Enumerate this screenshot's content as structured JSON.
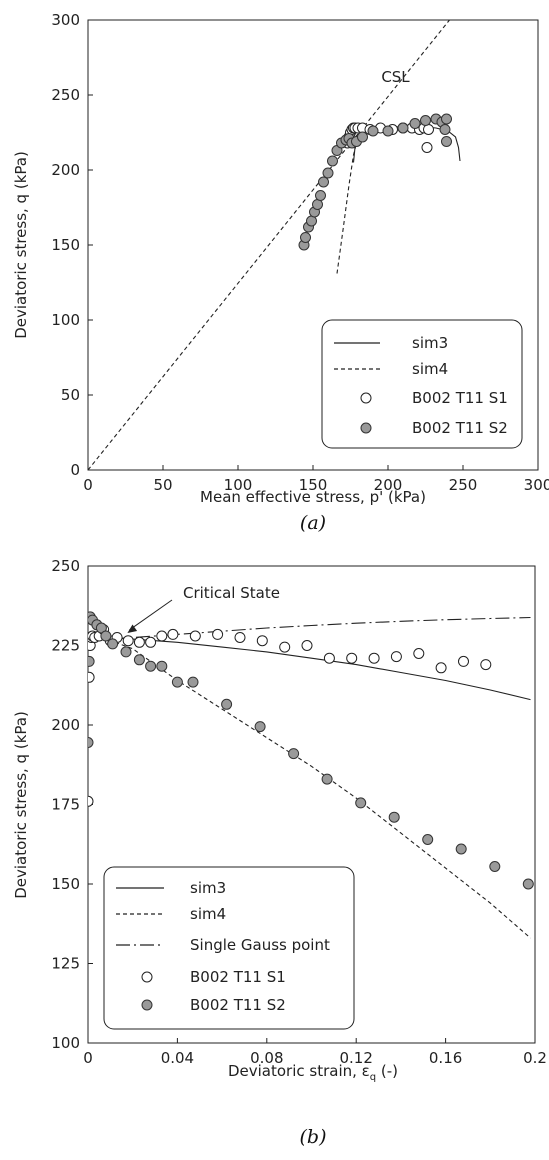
{
  "chart_data": [
    {
      "type": "line",
      "caption": "(a)",
      "xlabel": "Mean effective stress, p' (kPa)",
      "ylabel": "Deviatoric stress, q (kPa)",
      "xlim": [
        0,
        300
      ],
      "ylim": [
        0,
        300
      ],
      "xticks": [
        "0",
        "50",
        "100",
        "150",
        "200",
        "250",
        "300"
      ],
      "yticks": [
        "0",
        "50",
        "100",
        "150",
        "200",
        "250",
        "300"
      ],
      "grid": false,
      "legend_position": "bottom-right",
      "annotations": [
        {
          "text": "CSL",
          "x": 205,
          "y": 262
        }
      ],
      "series": [
        {
          "name": "CSL",
          "style": "dashed-line",
          "x": [
            0,
            241
          ],
          "y": [
            0,
            300
          ]
        },
        {
          "name": "sim3",
          "style": "solid-line",
          "x": [
            177,
            178,
            180,
            185,
            195,
            210,
            222,
            232,
            240,
            245,
            247,
            248
          ],
          "y": [
            205,
            215,
            222,
            226,
            228,
            229,
            229,
            228,
            226,
            222,
            215,
            206
          ]
        },
        {
          "name": "sim4",
          "style": "dashed-line",
          "x": [
            166,
            170,
            174,
            177,
            180,
            183,
            185
          ],
          "y": [
            131,
            160,
            190,
            210,
            222,
            227,
            230
          ]
        },
        {
          "name": "B002 T11 S1",
          "style": "open-circle",
          "x": [
            173,
            174,
            175,
            176,
            177,
            178,
            180,
            183,
            188,
            195,
            203,
            210,
            216,
            221,
            224,
            227,
            226
          ],
          "y": [
            218,
            222,
            225,
            227,
            228,
            228,
            228,
            228,
            227,
            228,
            227,
            228,
            228,
            227,
            228,
            227,
            215
          ]
        },
        {
          "name": "B002 T11 S2",
          "style": "filled-circle",
          "x": [
            144,
            145,
            147,
            149,
            151,
            153,
            155,
            157,
            160,
            163,
            166,
            169,
            172,
            174,
            176,
            179,
            183,
            190,
            200,
            210,
            218,
            225,
            232,
            236,
            238,
            239,
            239
          ],
          "y": [
            150,
            155,
            162,
            166,
            172,
            177,
            183,
            192,
            198,
            206,
            213,
            218,
            220,
            221,
            218,
            219,
            222,
            226,
            226,
            228,
            231,
            233,
            234,
            232,
            227,
            219,
            234
          ]
        }
      ]
    },
    {
      "type": "line",
      "caption": "(b)",
      "xlabel": "Deviatoric strain, ε",
      "xlabel_sub": "q",
      "xlabel_suffix": " (-)",
      "ylabel": "Deviatoric stress, q (kPa)",
      "xlim": [
        0,
        0.2
      ],
      "ylim": [
        100,
        250
      ],
      "xticks": [
        "0",
        "0.04",
        "0.08",
        "0.12",
        "0.16",
        "0.2"
      ],
      "yticks": [
        "100",
        "125",
        "150",
        "175",
        "200",
        "225",
        "250"
      ],
      "grid": false,
      "legend_position": "bottom-left",
      "annotations": [
        {
          "text": "Critical State",
          "x": 0.0172,
          "y": 228
        }
      ],
      "series": [
        {
          "name": "sim3",
          "style": "solid-line",
          "x": [
            0,
            0.005,
            0.01,
            0.02,
            0.04,
            0.06,
            0.08,
            0.1,
            0.12,
            0.14,
            0.16,
            0.18,
            0.198
          ],
          "y": [
            228,
            227.8,
            227.5,
            227,
            226,
            224.5,
            223,
            221,
            219,
            216.5,
            214,
            211,
            208
          ]
        },
        {
          "name": "sim4",
          "style": "dashed-line",
          "x": [
            0,
            0.005,
            0.01,
            0.02,
            0.04,
            0.06,
            0.08,
            0.1,
            0.12,
            0.14,
            0.16,
            0.18,
            0.198
          ],
          "y": [
            228,
            227.5,
            226.5,
            224,
            214,
            205,
            196,
            187,
            177,
            166,
            155,
            144,
            133
          ]
        },
        {
          "name": "Single Gauss point",
          "style": "dash-dot-line",
          "x": [
            0,
            0.01,
            0.02,
            0.04,
            0.06,
            0.08,
            0.1,
            0.12,
            0.14,
            0.16,
            0.18,
            0.198
          ],
          "y": [
            227,
            227,
            227.5,
            228.5,
            229.5,
            230.5,
            231.3,
            232,
            232.6,
            233.1,
            233.5,
            233.8
          ]
        },
        {
          "name": "B002 T11 S1",
          "style": "open-circle",
          "x": [
            0,
            0.0005,
            0.001,
            0.0015,
            0.002,
            0.003,
            0.005,
            0.007,
            0.01,
            0.013,
            0.018,
            0.023,
            0.028,
            0.033,
            0.038,
            0.048,
            0.058,
            0.068,
            0.078,
            0.088,
            0.098,
            0.108,
            0.118,
            0.128,
            0.138,
            0.148,
            0.158,
            0.168,
            0.178
          ],
          "y": [
            176,
            215,
            225,
            227.5,
            228,
            227.5,
            228,
            230,
            226.5,
            227.5,
            226.5,
            226,
            226,
            228,
            228.5,
            228,
            228.5,
            227.5,
            226.5,
            224.5,
            225,
            221,
            221,
            221,
            221.5,
            222.5,
            218,
            220,
            219
          ]
        },
        {
          "name": "B002 T11 S2",
          "style": "filled-circle",
          "x": [
            0,
            0.0005,
            0.001,
            0.002,
            0.004,
            0.006,
            0.008,
            0.011,
            0.017,
            0.023,
            0.028,
            0.033,
            0.04,
            0.047,
            0.062,
            0.077,
            0.092,
            0.107,
            0.122,
            0.137,
            0.152,
            0.167,
            0.182,
            0.197
          ],
          "y": [
            194.5,
            220,
            234,
            233,
            231.5,
            230.5,
            228,
            225.5,
            223,
            220.5,
            218.5,
            218.5,
            213.5,
            213.5,
            206.5,
            199.5,
            191,
            183,
            175.5,
            171,
            164,
            161,
            155.5,
            150
          ]
        }
      ]
    }
  ]
}
